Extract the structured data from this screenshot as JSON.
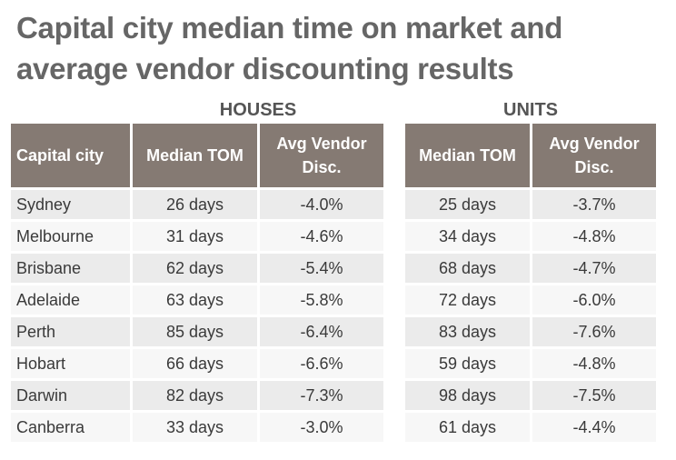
{
  "title_line1": "Capital city median time on market and",
  "title_line2": "average vendor discounting results",
  "chart_data": {
    "type": "table",
    "groups": [
      "HOUSES",
      "UNITS"
    ],
    "columns": {
      "city": "Capital city",
      "houses_tom": "Median TOM",
      "houses_disc": "Avg Vendor Disc.",
      "units_tom": "Median TOM",
      "units_disc": "Avg Vendor Disc."
    },
    "rows": [
      {
        "city": "Sydney",
        "houses_tom": "26 days",
        "houses_disc": "-4.0%",
        "units_tom": "25 days",
        "units_disc": "-3.7%"
      },
      {
        "city": "Melbourne",
        "houses_tom": "31 days",
        "houses_disc": "-4.6%",
        "units_tom": "34 days",
        "units_disc": "-4.8%"
      },
      {
        "city": "Brisbane",
        "houses_tom": "62 days",
        "houses_disc": "-5.4%",
        "units_tom": "68 days",
        "units_disc": "-4.7%"
      },
      {
        "city": "Adelaide",
        "houses_tom": "63 days",
        "houses_disc": "-5.8%",
        "units_tom": "72 days",
        "units_disc": "-6.0%"
      },
      {
        "city": "Perth",
        "houses_tom": "85 days",
        "houses_disc": "-6.4%",
        "units_tom": "83 days",
        "units_disc": "-7.6%"
      },
      {
        "city": "Hobart",
        "houses_tom": "66 days",
        "houses_disc": "-6.6%",
        "units_tom": "59 days",
        "units_disc": "-4.8%"
      },
      {
        "city": "Darwin",
        "houses_tom": "82 days",
        "houses_disc": "-7.3%",
        "units_tom": "98 days",
        "units_disc": "-7.5%"
      },
      {
        "city": "Canberra",
        "houses_tom": "33 days",
        "houses_disc": "-3.0%",
        "units_tom": "61 days",
        "units_disc": "-4.4%"
      }
    ]
  },
  "colors": {
    "header_bg": "#857a73",
    "header_text": "#ffffff",
    "row_odd": "#ebebeb",
    "row_even": "#f7f7f7",
    "title": "#666666"
  }
}
